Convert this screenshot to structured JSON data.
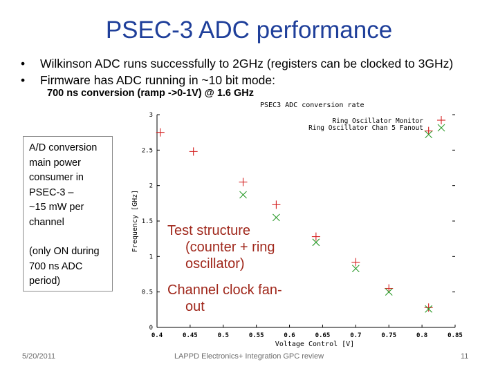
{
  "slide": {
    "title": "PSEC-3 ADC performance",
    "bullets": [
      "Wilkinson ADC runs successfully to 2GHz  (registers can be clocked to 3GHz)",
      "Firmware has ADC  running  in ~10 bit mode:"
    ],
    "subnote": "700 ns conversion (ramp ->0-1V) @ 1.6 GHz",
    "sidebox": {
      "line1": "A/D conversion",
      "line2": "main power",
      "line3": "consumer in",
      "line4": "PSEC-3 –",
      "line5": "~15 mW per",
      "line6": "channel",
      "line7": "(only ON during",
      "line8": "700 ns ADC",
      "line9": "period)"
    },
    "annotation_1": {
      "line1": "Test structure",
      "line2": "(counter + ring",
      "line3": "oscillator)"
    },
    "annotation_2": {
      "line1": "Channel clock fan-",
      "line2": "out"
    },
    "footer": {
      "date": "5/20/2011",
      "center": "LAPPD Electronics+ Integration GPC review",
      "page": "11"
    }
  },
  "chart_data": {
    "type": "scatter",
    "title": "PSEC3 ADC conversion rate",
    "xlabel": "Voltage Control [V]",
    "ylabel": "Frequency [GHz]",
    "xlim": [
      0.4,
      0.85
    ],
    "ylim": [
      0,
      3
    ],
    "xticks": [
      "0.4",
      "0.45",
      "0.5",
      "0.55",
      "0.6",
      "0.65",
      "0.7",
      "0.75",
      "0.8",
      "0.85"
    ],
    "yticks": [
      "0",
      "0.5",
      "1",
      "1.5",
      "2",
      "2.5",
      "3"
    ],
    "legend_position": "top-right",
    "colors": {
      "series1": "#d42020",
      "series2": "#2a9a2a",
      "axis": "#000000"
    },
    "series": [
      {
        "name": "Ring Oscillator Monitor",
        "marker": "plus",
        "x": [
          0.405,
          0.455,
          0.53,
          0.58,
          0.64,
          0.7,
          0.75,
          0.81
        ],
        "y": [
          2.75,
          2.48,
          2.05,
          1.73,
          1.28,
          0.92,
          0.55,
          0.28
        ]
      },
      {
        "name": "Ring Oscillator Chan 5 Fanout",
        "marker": "x",
        "x": [
          0.53,
          0.58,
          0.64,
          0.7,
          0.75,
          0.81
        ],
        "y": [
          1.87,
          1.55,
          1.2,
          0.83,
          0.5,
          0.26
        ]
      },
      {
        "name": "",
        "marker": "plus",
        "x": [
          0.81
        ],
        "y": [
          2.77
        ]
      },
      {
        "name": "",
        "marker": "x",
        "x": [
          0.81
        ],
        "y": [
          2.72
        ]
      }
    ]
  }
}
